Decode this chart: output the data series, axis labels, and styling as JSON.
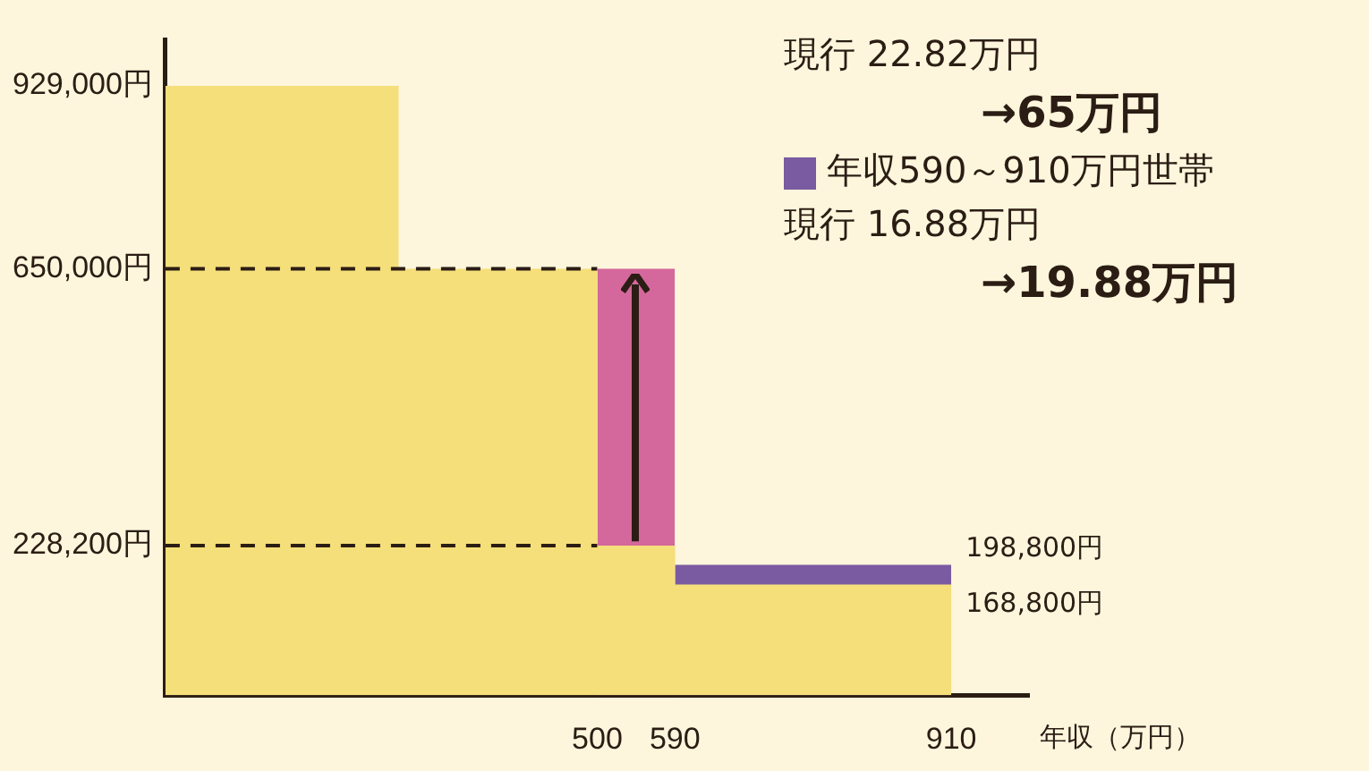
{
  "chart_data": {
    "type": "area",
    "xlabel": "年収（万円）",
    "marker": "none",
    "legend": "top right",
    "xlim": [
      0,
      1000
    ],
    "xticks": [
      500,
      590,
      910
    ],
    "ylim": [
      0,
      1000000
    ],
    "yticks": [
      {
        "value": 228200,
        "label": "228,200円"
      },
      {
        "value": 650000,
        "label": "650,000円"
      },
      {
        "value": 929000,
        "label": "929,000円"
      }
    ],
    "series": [
      {
        "type": "area",
        "color": "#f5df7a",
        "x": [
          0,
          270,
          270,
          500,
          500,
          590,
          590,
          910
        ],
        "values": [
          929000,
          929000,
          650000,
          650000,
          228200,
          228200,
          168800,
          168800
        ]
      },
      {
        "type": "area",
        "color": "#d4689c",
        "x": [
          500,
          590
        ],
        "values": [
          650000,
          650000
        ]
      },
      {
        "type": "area",
        "name": "年収590～910万円世帯",
        "color": "#7a5aa0",
        "x": [
          590,
          910
        ],
        "values": [
          198800,
          198800
        ]
      }
    ],
    "ref_lines": [
      {
        "axis": "y",
        "value": 650000,
        "line_style": "dashed",
        "color": "#2b1d14"
      },
      {
        "axis": "y",
        "value": 228200,
        "line_style": "dashed",
        "color": "#2b1d14"
      }
    ],
    "annotations": [
      "現行 22.82万円",
      "→65万円",
      "現行 16.88万円",
      "→19.88万円",
      {
        "text": "198,800円",
        "x": 910,
        "y": 198800
      },
      {
        "text": "168,800円",
        "x": 910,
        "y": 168800
      }
    ]
  }
}
